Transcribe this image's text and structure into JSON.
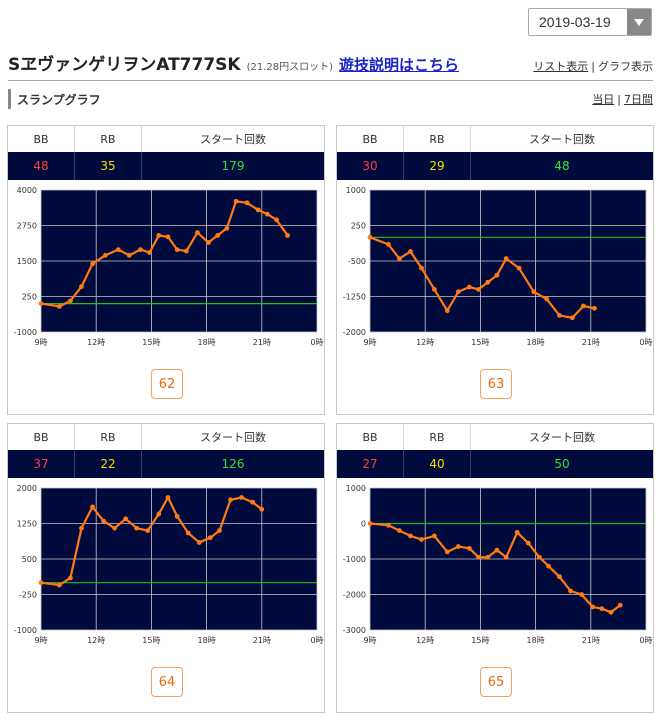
{
  "header": {
    "date": "2019-03-19",
    "machine_name": "SヱヴァンゲリヲンAT777SK",
    "rate": "(21.28円スロット)",
    "rule_link": "遊技説明はこちら",
    "list_view": "リスト表示",
    "graph_view": "グラフ表示",
    "separator": "|"
  },
  "section": {
    "title": "スランプグラフ",
    "period_today": "当日",
    "period_7days": "7日間"
  },
  "colors": {
    "plot_bg": "#000a3c",
    "line": "#ff7a14",
    "zero_line": "#22c022",
    "grid": "#c8c8c8",
    "bb": "#ff3b3b",
    "rb": "#f0e000",
    "start": "#33e033",
    "button_text": "#e86a10"
  },
  "stat_labels": {
    "bb": "BB",
    "rb": "RB",
    "start": "スタート回数"
  },
  "chart_data": [
    {
      "type": "line",
      "machine_no": "62",
      "bb": "48",
      "rb": "35",
      "start": "179",
      "x_ticks": [
        "9時",
        "12時",
        "15時",
        "18時",
        "21時",
        "0時"
      ],
      "y_ticks": [
        4000,
        2750,
        1500,
        250,
        -1000
      ],
      "ylim": [
        -1000,
        4000
      ],
      "xlim": [
        9,
        24
      ],
      "x": [
        9.0,
        10.0,
        10.6,
        11.2,
        11.8,
        12.5,
        13.2,
        13.8,
        14.4,
        14.9,
        15.4,
        15.9,
        16.4,
        16.9,
        17.5,
        18.1,
        18.6,
        19.1,
        19.6,
        20.2,
        20.8,
        21.3,
        21.8,
        22.4
      ],
      "y": [
        0,
        -100,
        100,
        600,
        1400,
        1700,
        1900,
        1700,
        1900,
        1800,
        2400,
        2350,
        1900,
        1850,
        2500,
        2150,
        2400,
        2650,
        3600,
        3550,
        3300,
        3150,
        2950,
        2400
      ],
      "zero_y": 0
    },
    {
      "type": "line",
      "machine_no": "63",
      "bb": "30",
      "rb": "29",
      "start": "48",
      "x_ticks": [
        "9時",
        "12時",
        "15時",
        "18時",
        "21時",
        "0時"
      ],
      "y_ticks": [
        1000,
        250,
        -500,
        -1250,
        -2000
      ],
      "ylim": [
        -2000,
        1000
      ],
      "xlim": [
        9,
        24
      ],
      "x": [
        9.0,
        10.0,
        10.6,
        11.2,
        11.8,
        12.5,
        13.2,
        13.8,
        14.4,
        14.9,
        15.4,
        15.9,
        16.4,
        17.1,
        17.9,
        18.6,
        19.3,
        20.0,
        20.6,
        21.2
      ],
      "y": [
        0,
        -150,
        -450,
        -300,
        -650,
        -1100,
        -1550,
        -1150,
        -1050,
        -1100,
        -950,
        -800,
        -450,
        -650,
        -1150,
        -1300,
        -1650,
        -1700,
        -1450,
        -1500
      ],
      "zero_y": 0
    },
    {
      "type": "line",
      "machine_no": "64",
      "bb": "37",
      "rb": "22",
      "start": "126",
      "x_ticks": [
        "9時",
        "12時",
        "15時",
        "18時",
        "21時",
        "0時"
      ],
      "y_ticks": [
        2000,
        1250,
        500,
        -250,
        -1000
      ],
      "ylim": [
        -1000,
        2000
      ],
      "xlim": [
        9,
        24
      ],
      "x": [
        9.0,
        10.0,
        10.6,
        11.2,
        11.8,
        12.4,
        13.0,
        13.6,
        14.2,
        14.8,
        15.4,
        15.9,
        16.4,
        17.0,
        17.6,
        18.2,
        18.7,
        19.3,
        19.9,
        20.5,
        21.0
      ],
      "y": [
        0,
        -50,
        100,
        1150,
        1600,
        1300,
        1150,
        1350,
        1150,
        1100,
        1450,
        1800,
        1400,
        1050,
        850,
        950,
        1100,
        1750,
        1800,
        1700,
        1550
      ],
      "zero_y": 0
    },
    {
      "type": "line",
      "machine_no": "65",
      "bb": "27",
      "rb": "40",
      "start": "50",
      "x_ticks": [
        "9時",
        "12時",
        "15時",
        "18時",
        "21時",
        "0時"
      ],
      "y_ticks": [
        1000,
        0,
        -1000,
        -2000,
        -3000
      ],
      "ylim": [
        -3000,
        1000
      ],
      "xlim": [
        9,
        24
      ],
      "x": [
        9.0,
        10.0,
        10.6,
        11.2,
        11.8,
        12.5,
        13.2,
        13.8,
        14.4,
        14.9,
        15.4,
        15.9,
        16.4,
        17.0,
        17.6,
        18.2,
        18.7,
        19.3,
        19.9,
        20.5,
        21.1,
        21.6,
        22.1,
        22.6
      ],
      "y": [
        0,
        -50,
        -200,
        -350,
        -450,
        -350,
        -800,
        -650,
        -700,
        -950,
        -950,
        -750,
        -950,
        -250,
        -550,
        -950,
        -1200,
        -1500,
        -1900,
        -2000,
        -2350,
        -2400,
        -2500,
        -2300
      ],
      "zero_y": 0
    }
  ]
}
